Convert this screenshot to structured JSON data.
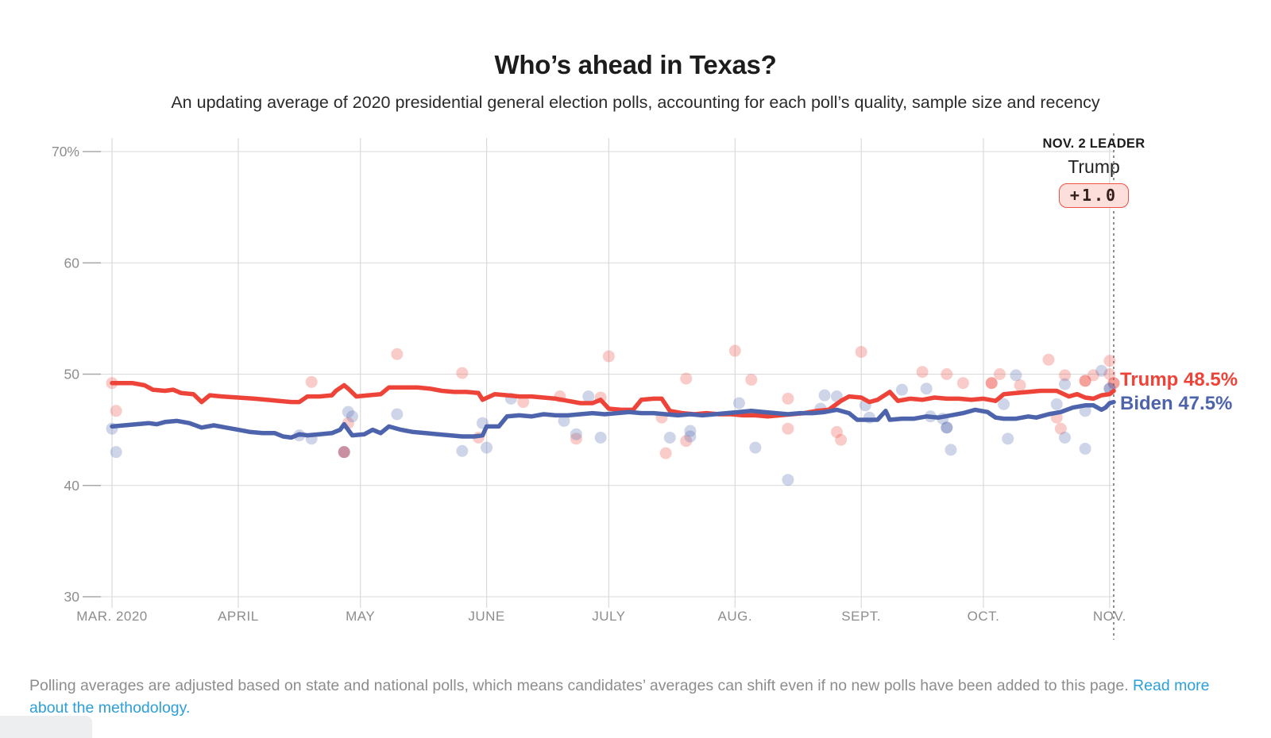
{
  "header": {
    "title": "Who’s ahead in Texas?",
    "subtitle": "An updating average of 2020 presidential general election polls, accounting for each poll’s quality, sample size and recency"
  },
  "annotation": {
    "kicker": "NOV. 2 LEADER",
    "leader_name": "Trump",
    "lead_badge": "+1.0"
  },
  "line_labels": {
    "trump": "Trump 48.5%",
    "biden": "Biden 47.5%"
  },
  "footer": {
    "text": "Polling averages are adjusted based on state and national polls, which means candidates’ averages can shift even if no new polls have been added to this page. ",
    "link_text": "Read more about the methodology."
  },
  "colors": {
    "trump": "#ee4338",
    "biden": "#4d64ac",
    "trump_label": "#ed4339",
    "biden_label": "#4d64ac",
    "grid": "#dadada",
    "tick": "#a8a8a8",
    "axis_text": "#8d8d8d",
    "event_line": "#555555",
    "link": "#2d9fd8",
    "pill_bg": "#fcdedb",
    "pill_border": "#ef5146"
  },
  "chart_data": {
    "type": "line",
    "title": "Who’s ahead in Texas?",
    "x_axis": {
      "start_date": "2020-03-01",
      "end_date": "2020-11-02",
      "total_days": 246,
      "labels": [
        "MAR. 2020",
        "APRIL",
        "MAY",
        "JUNE",
        "JULY",
        "AUG.",
        "SEPT.",
        "OCT.",
        "NOV."
      ],
      "month_start_days": [
        0,
        31,
        61,
        92,
        122,
        153,
        184,
        214,
        245
      ]
    },
    "y_axis": {
      "labels": [
        "70%",
        "60",
        "50",
        "40",
        "30"
      ],
      "values": [
        70,
        60,
        50,
        40,
        30
      ],
      "min": 30,
      "max": 70
    },
    "event_line": {
      "day": 246,
      "label": "NOV. 2 LEADER",
      "leader": "Trump",
      "margin": "+1.0"
    },
    "series": [
      {
        "name": "Trump",
        "end_value": 48.5,
        "points": [
          [
            0,
            49.2
          ],
          [
            5,
            49.2
          ],
          [
            8,
            49.0
          ],
          [
            10,
            48.6
          ],
          [
            13,
            48.5
          ],
          [
            15,
            48.6
          ],
          [
            17,
            48.3
          ],
          [
            20,
            48.2
          ],
          [
            22,
            47.5
          ],
          [
            24,
            48.1
          ],
          [
            27,
            48.0
          ],
          [
            31,
            47.9
          ],
          [
            35,
            47.8
          ],
          [
            38,
            47.7
          ],
          [
            41,
            47.6
          ],
          [
            44,
            47.5
          ],
          [
            46,
            47.5
          ],
          [
            48,
            48.0
          ],
          [
            51,
            48.0
          ],
          [
            54,
            48.1
          ],
          [
            55,
            48.5
          ],
          [
            57,
            49.0
          ],
          [
            58,
            48.7
          ],
          [
            60,
            48.0
          ],
          [
            63,
            48.1
          ],
          [
            66,
            48.2
          ],
          [
            68,
            48.8
          ],
          [
            72,
            48.8
          ],
          [
            75,
            48.8
          ],
          [
            78,
            48.7
          ],
          [
            81,
            48.5
          ],
          [
            84,
            48.4
          ],
          [
            87,
            48.4
          ],
          [
            90,
            48.3
          ],
          [
            91,
            47.7
          ],
          [
            94,
            48.2
          ],
          [
            97,
            48.1
          ],
          [
            100,
            48.0
          ],
          [
            103,
            48.0
          ],
          [
            106,
            47.9
          ],
          [
            109,
            47.8
          ],
          [
            112,
            47.6
          ],
          [
            115,
            47.4
          ],
          [
            118,
            47.4
          ],
          [
            120,
            47.7
          ],
          [
            122,
            46.9
          ],
          [
            125,
            46.8
          ],
          [
            128,
            46.8
          ],
          [
            130,
            47.7
          ],
          [
            133,
            47.8
          ],
          [
            135,
            47.8
          ],
          [
            137,
            46.7
          ],
          [
            140,
            46.5
          ],
          [
            143,
            46.4
          ],
          [
            146,
            46.5
          ],
          [
            149,
            46.4
          ],
          [
            152,
            46.4
          ],
          [
            155,
            46.3
          ],
          [
            158,
            46.3
          ],
          [
            161,
            46.2
          ],
          [
            164,
            46.3
          ],
          [
            167,
            46.4
          ],
          [
            170,
            46.5
          ],
          [
            173,
            46.7
          ],
          [
            176,
            46.8
          ],
          [
            179,
            47.6
          ],
          [
            181,
            48.0
          ],
          [
            184,
            47.9
          ],
          [
            186,
            47.5
          ],
          [
            188,
            47.7
          ],
          [
            191,
            48.4
          ],
          [
            193,
            47.6
          ],
          [
            196,
            47.8
          ],
          [
            199,
            47.7
          ],
          [
            202,
            47.9
          ],
          [
            205,
            47.8
          ],
          [
            208,
            47.8
          ],
          [
            211,
            47.7
          ],
          [
            214,
            47.8
          ],
          [
            217,
            47.6
          ],
          [
            219,
            48.2
          ],
          [
            222,
            48.3
          ],
          [
            225,
            48.4
          ],
          [
            228,
            48.5
          ],
          [
            232,
            48.5
          ],
          [
            235,
            48.0
          ],
          [
            237,
            48.2
          ],
          [
            239,
            47.9
          ],
          [
            241,
            47.8
          ],
          [
            243,
            48.1
          ],
          [
            245,
            48.2
          ],
          [
            246,
            48.5
          ]
        ]
      },
      {
        "name": "Biden",
        "end_value": 47.5,
        "points": [
          [
            0,
            45.3
          ],
          [
            3,
            45.4
          ],
          [
            6,
            45.5
          ],
          [
            9,
            45.6
          ],
          [
            11,
            45.5
          ],
          [
            13,
            45.7
          ],
          [
            16,
            45.8
          ],
          [
            19,
            45.6
          ],
          [
            22,
            45.2
          ],
          [
            25,
            45.4
          ],
          [
            28,
            45.2
          ],
          [
            31,
            45.0
          ],
          [
            34,
            44.8
          ],
          [
            37,
            44.7
          ],
          [
            40,
            44.7
          ],
          [
            42,
            44.4
          ],
          [
            44,
            44.3
          ],
          [
            46,
            44.6
          ],
          [
            48,
            44.5
          ],
          [
            51,
            44.6
          ],
          [
            54,
            44.7
          ],
          [
            56,
            45.0
          ],
          [
            57,
            45.5
          ],
          [
            59,
            44.5
          ],
          [
            62,
            44.6
          ],
          [
            64,
            45.0
          ],
          [
            66,
            44.7
          ],
          [
            68,
            45.3
          ],
          [
            71,
            45.0
          ],
          [
            74,
            44.8
          ],
          [
            77,
            44.7
          ],
          [
            80,
            44.6
          ],
          [
            83,
            44.5
          ],
          [
            86,
            44.4
          ],
          [
            89,
            44.4
          ],
          [
            91,
            44.5
          ],
          [
            92,
            45.3
          ],
          [
            95,
            45.3
          ],
          [
            97,
            46.2
          ],
          [
            100,
            46.3
          ],
          [
            103,
            46.2
          ],
          [
            106,
            46.4
          ],
          [
            109,
            46.3
          ],
          [
            112,
            46.3
          ],
          [
            115,
            46.4
          ],
          [
            118,
            46.5
          ],
          [
            121,
            46.4
          ],
          [
            124,
            46.5
          ],
          [
            127,
            46.6
          ],
          [
            130,
            46.5
          ],
          [
            133,
            46.5
          ],
          [
            136,
            46.4
          ],
          [
            139,
            46.3
          ],
          [
            142,
            46.4
          ],
          [
            145,
            46.3
          ],
          [
            148,
            46.4
          ],
          [
            151,
            46.5
          ],
          [
            154,
            46.6
          ],
          [
            157,
            46.7
          ],
          [
            160,
            46.6
          ],
          [
            163,
            46.5
          ],
          [
            166,
            46.4
          ],
          [
            169,
            46.5
          ],
          [
            172,
            46.5
          ],
          [
            175,
            46.6
          ],
          [
            178,
            46.8
          ],
          [
            181,
            46.5
          ],
          [
            183,
            45.9
          ],
          [
            186,
            45.9
          ],
          [
            188,
            45.9
          ],
          [
            190,
            46.7
          ],
          [
            191,
            45.9
          ],
          [
            194,
            46.0
          ],
          [
            197,
            46.0
          ],
          [
            200,
            46.2
          ],
          [
            203,
            46.1
          ],
          [
            206,
            46.3
          ],
          [
            209,
            46.5
          ],
          [
            212,
            46.8
          ],
          [
            215,
            46.6
          ],
          [
            217,
            46.1
          ],
          [
            219,
            46.0
          ],
          [
            222,
            46.0
          ],
          [
            225,
            46.2
          ],
          [
            227,
            46.1
          ],
          [
            230,
            46.4
          ],
          [
            233,
            46.6
          ],
          [
            236,
            47.0
          ],
          [
            239,
            47.2
          ],
          [
            241,
            47.2
          ],
          [
            243,
            46.8
          ],
          [
            244,
            47.0
          ],
          [
            245,
            47.4
          ],
          [
            246,
            47.5
          ]
        ]
      }
    ],
    "scatter": {
      "trump": [
        [
          0,
          49.2
        ],
        [
          1,
          46.7
        ],
        [
          49,
          49.3
        ],
        [
          58,
          45.6
        ],
        [
          57,
          43.0,
          1
        ],
        [
          70,
          51.8
        ],
        [
          86,
          50.1
        ],
        [
          90,
          44.3
        ],
        [
          101,
          47.5
        ],
        [
          110,
          48.0
        ],
        [
          120,
          47.9
        ],
        [
          114,
          44.2
        ],
        [
          122,
          51.6
        ],
        [
          135,
          46.1
        ],
        [
          136,
          42.9
        ],
        [
          141,
          49.6
        ],
        [
          141,
          44.0
        ],
        [
          153,
          52.1
        ],
        [
          157,
          49.5
        ],
        [
          166,
          47.8
        ],
        [
          166,
          45.1
        ],
        [
          178,
          44.8
        ],
        [
          179,
          44.1
        ],
        [
          184,
          52.0
        ],
        [
          199,
          50.2
        ],
        [
          205,
          50.0
        ],
        [
          209,
          49.2
        ],
        [
          216,
          49.2,
          1
        ],
        [
          218,
          50.0
        ],
        [
          223,
          49.0
        ],
        [
          230,
          51.3
        ],
        [
          232,
          46.1
        ],
        [
          233,
          45.1
        ],
        [
          234,
          49.9
        ],
        [
          239,
          49.4,
          1
        ],
        [
          241,
          49.9
        ],
        [
          245,
          51.2
        ],
        [
          245,
          50.0
        ],
        [
          246,
          49.2,
          1
        ]
      ],
      "biden": [
        [
          0,
          45.1
        ],
        [
          1,
          43.0
        ],
        [
          46,
          44.5
        ],
        [
          49,
          44.2
        ],
        [
          58,
          46.6
        ],
        [
          59,
          46.2
        ],
        [
          57,
          43.0
        ],
        [
          70,
          46.4
        ],
        [
          86,
          43.1
        ],
        [
          91,
          45.6
        ],
        [
          92,
          43.4
        ],
        [
          98,
          47.8
        ],
        [
          111,
          45.8
        ],
        [
          114,
          44.6
        ],
        [
          117,
          48.0
        ],
        [
          120,
          44.3
        ],
        [
          137,
          44.3
        ],
        [
          142,
          44.9
        ],
        [
          142,
          44.4
        ],
        [
          154,
          47.4
        ],
        [
          158,
          43.4
        ],
        [
          166,
          40.5
        ],
        [
          174,
          46.9
        ],
        [
          175,
          48.1
        ],
        [
          178,
          48.0
        ],
        [
          185,
          47.2
        ],
        [
          186,
          46.1
        ],
        [
          194,
          48.6
        ],
        [
          200,
          48.7
        ],
        [
          201,
          46.2
        ],
        [
          204,
          46.0
        ],
        [
          205,
          45.2,
          1
        ],
        [
          206,
          43.2
        ],
        [
          219,
          47.3
        ],
        [
          220,
          44.2
        ],
        [
          222,
          49.9
        ],
        [
          232,
          47.3
        ],
        [
          234,
          49.1
        ],
        [
          234,
          44.3
        ],
        [
          239,
          43.3
        ],
        [
          239,
          46.7
        ],
        [
          243,
          50.3
        ],
        [
          245,
          48.7,
          1
        ]
      ]
    }
  }
}
